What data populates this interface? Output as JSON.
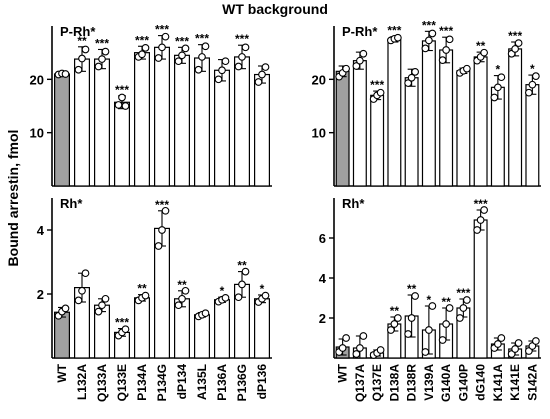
{
  "figure_title": "WT background",
  "shared_ylabel": "Bound arrestin, fmol",
  "colors": {
    "wt_bar": "#a0a0a0",
    "mutant_bar": "#ffffff",
    "stroke": "#000000"
  },
  "chart_data": [
    {
      "id": "top-left",
      "type": "bar",
      "title": "P-Rh*",
      "ylim": [
        0,
        30
      ],
      "yticks": [
        10,
        20
      ],
      "show_xlabels": false,
      "categories": [
        "WT",
        "L132A",
        "Q133A",
        "Q133E",
        "P134A",
        "P134G",
        "dP134",
        "A135L",
        "P136A",
        "P136G",
        "dP136"
      ],
      "values": [
        21,
        23.8,
        23.8,
        15.7,
        25,
        26,
        24.5,
        24,
        21.7,
        24.2,
        20.9
      ],
      "errors": [
        0.4,
        2.3,
        1.8,
        1.2,
        1.2,
        2.2,
        1.5,
        2.5,
        2.0,
        2.2,
        1.6
      ],
      "points": [
        [
          20.9,
          21.1,
          21.0
        ],
        [
          21.8,
          23.9,
          25.6
        ],
        [
          22.4,
          23.8,
          25.2
        ],
        [
          15.2,
          16.6,
          15.0
        ],
        [
          24.2,
          24.7,
          25.9
        ],
        [
          24.0,
          26.0,
          28.0
        ],
        [
          23.4,
          24.5,
          25.8
        ],
        [
          21.8,
          24.2,
          26.2
        ],
        [
          20.0,
          21.7,
          23.4
        ],
        [
          22.4,
          24.2,
          26.0
        ],
        [
          19.5,
          20.9,
          22.3
        ]
      ],
      "significance": [
        "",
        "**",
        "***",
        "***",
        "***",
        "***",
        "***",
        "***",
        "",
        "***",
        ""
      ]
    },
    {
      "id": "top-right",
      "type": "bar",
      "title": "P-Rh*",
      "ylim": [
        0,
        30
      ],
      "yticks": [
        10,
        20
      ],
      "show_xlabels": false,
      "categories": [
        "WT",
        "Q137A",
        "Q137E",
        "D138A",
        "D138R",
        "V139A",
        "G140A",
        "G140P",
        "dG140",
        "K141A",
        "K141E",
        "S142A"
      ],
      "values": [
        21.5,
        23.5,
        17,
        27.5,
        20.3,
        27.2,
        25.5,
        21.6,
        24.2,
        18.5,
        25.7,
        19
      ],
      "errors": [
        1.0,
        1.6,
        0.8,
        0.5,
        1.6,
        1.8,
        2.4,
        0.5,
        0.9,
        2.2,
        1.3,
        1.8
      ],
      "points": [
        [
          20.5,
          21.2,
          22.0
        ],
        [
          22.5,
          23.5,
          24.8
        ],
        [
          16.3,
          17.0,
          17.5
        ],
        [
          27.3,
          27.6,
          27.8
        ],
        [
          19.3,
          20.3,
          21.4
        ],
        [
          25.8,
          27.3,
          28.6
        ],
        [
          23.6,
          25.5,
          27.5
        ],
        [
          21.2,
          21.6,
          22.0
        ],
        [
          23.5,
          24.2,
          25.0
        ],
        [
          16.6,
          18.5,
          20.4
        ],
        [
          24.8,
          25.7,
          26.8
        ],
        [
          17.5,
          19.0,
          20.6
        ]
      ],
      "significance": [
        "",
        "",
        "***",
        "***",
        "",
        "***",
        "***",
        "",
        "**",
        "*",
        "***",
        "*"
      ]
    },
    {
      "id": "bottom-left",
      "type": "bar",
      "title": "Rh*",
      "ylim": [
        0,
        5
      ],
      "yticks": [
        2,
        4
      ],
      "show_xlabels": true,
      "categories": [
        "WT",
        "L132A",
        "Q133A",
        "Q133E",
        "P134A",
        "P134G",
        "dP134",
        "A135L",
        "P136A",
        "P136G",
        "dP136"
      ],
      "values": [
        1.43,
        2.2,
        1.65,
        0.8,
        1.88,
        4.05,
        1.85,
        1.35,
        1.82,
        2.3,
        1.85
      ],
      "errors": [
        0.15,
        0.45,
        0.2,
        0.12,
        0.1,
        0.55,
        0.25,
        0.07,
        0.08,
        0.4,
        0.12
      ],
      "points": [
        [
          1.32,
          1.45,
          1.55
        ],
        [
          1.8,
          2.1,
          2.65
        ],
        [
          1.45,
          1.65,
          1.85
        ],
        [
          0.7,
          0.8,
          0.9
        ],
        [
          1.8,
          1.88,
          1.95
        ],
        [
          3.5,
          4.0,
          4.6
        ],
        [
          1.65,
          1.85,
          2.1
        ],
        [
          1.3,
          1.35,
          1.4
        ],
        [
          1.76,
          1.82,
          1.88
        ],
        [
          1.9,
          2.3,
          2.7
        ],
        [
          1.75,
          1.85,
          1.95
        ]
      ],
      "significance": [
        "",
        "",
        "",
        "***",
        "**",
        "***",
        "**",
        "",
        "*",
        "**",
        "*"
      ]
    },
    {
      "id": "bottom-right",
      "type": "bar",
      "title": "Rh*",
      "ylim": [
        0,
        8
      ],
      "yticks": [
        2,
        4,
        6
      ],
      "show_xlabels": true,
      "categories": [
        "WT",
        "Q137A",
        "Q137E",
        "D138A",
        "D138R",
        "V139A",
        "G140A",
        "G140P",
        "dG140",
        "K141A",
        "K141E",
        "S142A"
      ],
      "values": [
        0.55,
        0.5,
        0.25,
        1.7,
        2.1,
        1.4,
        1.7,
        2.5,
        6.9,
        0.7,
        0.45,
        0.6
      ],
      "errors": [
        0.4,
        0.6,
        0.15,
        0.35,
        1.05,
        1.2,
        0.8,
        0.45,
        0.5,
        0.3,
        0.3,
        0.25
      ],
      "points": [
        [
          0.3,
          0.5,
          1.0
        ],
        [
          0.2,
          0.5,
          1.1
        ],
        [
          0.15,
          0.25,
          0.4
        ],
        [
          1.4,
          1.7,
          2.0
        ],
        [
          1.2,
          2.0,
          3.1
        ],
        [
          0.3,
          1.4,
          2.6
        ],
        [
          0.9,
          1.7,
          2.5
        ],
        [
          2.0,
          2.5,
          2.9
        ],
        [
          6.4,
          6.9,
          7.4
        ],
        [
          0.5,
          0.7,
          1.0
        ],
        [
          0.2,
          0.45,
          0.75
        ],
        [
          0.35,
          0.6,
          0.85
        ]
      ],
      "significance": [
        "",
        "",
        "",
        "**",
        "**",
        "*",
        "**",
        "***",
        "***",
        "",
        "",
        ""
      ]
    }
  ]
}
